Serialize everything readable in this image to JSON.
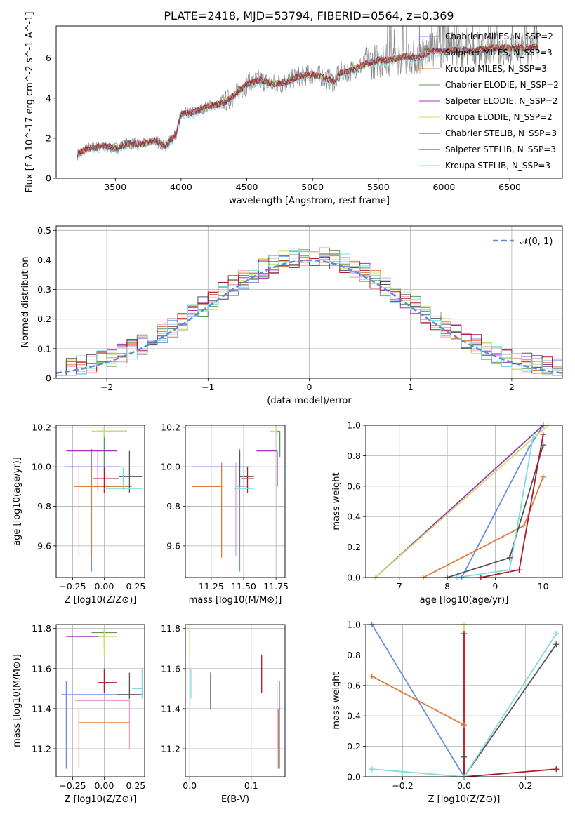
{
  "figure": {
    "title": "PLATE=2418, MJD=53794, FIBERID=0564, z=0.369"
  },
  "colors": {
    "chab_miles": "#6a8fe0",
    "salp_miles": "#e7a0c8",
    "krou_miles": "#e07b39",
    "chab_elodie": "#5a9a5a",
    "salp_elodie": "#9d36b9",
    "krou_elodie": "#c9e06a",
    "chab_stelib": "#555555",
    "salp_stelib": "#b2182b",
    "krou_stelib": "#7fdde0",
    "spectrum": "#808080",
    "normal": "#5b8bd6"
  },
  "chart_data": [
    {
      "type": "line",
      "id": "spectrum",
      "xlabel": "wavelength [Angstrom, rest frame]",
      "ylabel": "Flux [f_λ 10^-17 erg cm^-2 s^-1 A^-1]",
      "xlim": [
        3050,
        6900
      ],
      "ylim": [
        0,
        7.6
      ],
      "xticks": [
        3500,
        4000,
        4500,
        5000,
        5500,
        6000,
        6500
      ],
      "yticks": [
        0,
        2,
        4,
        6
      ],
      "legend": {
        "placement": "top-right",
        "entries": [
          {
            "label": "Chabrier MILES, N_SSP=2",
            "color_key": "chab_miles"
          },
          {
            "label": "Salpeter MILES, N_SSP=3",
            "color_key": "salp_miles"
          },
          {
            "label": "Kroupa MILES, N_SSP=3",
            "color_key": "krou_miles"
          },
          {
            "label": "Chabrier ELODIE, N_SSP=2",
            "color_key": "chab_elodie"
          },
          {
            "label": "Salpeter ELODIE, N_SSP=2",
            "color_key": "salp_elodie"
          },
          {
            "label": "Kroupa ELODIE, N_SSP=2",
            "color_key": "krou_elodie"
          },
          {
            "label": "Chabrier STELIB, N_SSP=3",
            "color_key": "chab_stelib"
          },
          {
            "label": "Salpeter STELIB, N_SSP=3",
            "color_key": "salp_stelib"
          },
          {
            "label": "Kroupa STELIB, N_SSP=3",
            "color_key": "krou_stelib"
          }
        ]
      },
      "model_continuum": {
        "x": [
          3210,
          3300,
          3400,
          3500,
          3600,
          3700,
          3800,
          3880,
          3960,
          4000,
          4100,
          4200,
          4300,
          4400,
          4500,
          4600,
          4700,
          4800,
          4900,
          5000,
          5100,
          5170,
          5200,
          5300,
          5400,
          5500,
          5600,
          5700,
          5800,
          5900,
          6000,
          6100,
          6200,
          6300,
          6400,
          6500,
          6600,
          6720
        ],
        "y": [
          1.2,
          1.5,
          1.6,
          1.5,
          1.75,
          1.7,
          1.9,
          1.6,
          2.2,
          3.2,
          3.3,
          3.6,
          3.7,
          4.1,
          4.7,
          4.9,
          4.7,
          4.8,
          5.1,
          5.2,
          5.0,
          4.8,
          5.2,
          5.4,
          5.7,
          5.9,
          5.9,
          6.1,
          6.0,
          6.4,
          6.3,
          6.4,
          6.35,
          6.45,
          6.5,
          6.5,
          6.5,
          6.6
        ]
      }
    },
    {
      "type": "bar",
      "id": "residuals",
      "xlabel": "(data-model)/error",
      "ylabel": "Normed distribution",
      "xlim": [
        -2.5,
        2.5
      ],
      "ylim": [
        0,
        0.515
      ],
      "xticks": [
        -2,
        -1,
        0,
        1,
        2
      ],
      "xtick_labels": [
        "−2",
        "−1",
        "0",
        "1",
        "2"
      ],
      "yticks": [
        0.0,
        0.1,
        0.2,
        0.3,
        0.4,
        0.5
      ],
      "bin_width": 0.1,
      "grid": true,
      "legend": {
        "placement": "top-right",
        "entries": [
          {
            "label": "𝒩(0, 1)",
            "color_key": "normal",
            "style": "dashed"
          }
        ]
      }
    },
    {
      "type": "scatter",
      "id": "age_vs_Z",
      "xlabel": "Z [log10(Z/Z⊙)]",
      "ylabel": "age [log10(age/yr)]",
      "xlim": [
        -0.38,
        0.32
      ],
      "ylim": [
        9.44,
        10.21
      ],
      "xticks": [
        -0.25,
        0.0,
        0.25
      ],
      "xtick_labels": [
        "−0.25",
        "0.00",
        "0.25"
      ],
      "yticks": [
        9.6,
        9.8,
        10.0,
        10.2
      ],
      "ytick_labels": [
        "9.6",
        "9.8",
        "10.0",
        "10.2"
      ],
      "grid": true,
      "points": [
        {
          "key": "chab_miles",
          "x": -0.1,
          "y": 10.0,
          "xlo": -0.31,
          "xhi": 0.14,
          "ylo": 9.47,
          "yhi": 10.09
        },
        {
          "key": "salp_miles",
          "x": -0.2,
          "y": 9.9,
          "xlo": -0.2,
          "xhi": 0.19,
          "ylo": 9.55,
          "yhi": 10.02
        },
        {
          "key": "krou_miles",
          "x": -0.1,
          "y": 9.9,
          "xlo": -0.24,
          "xhi": 0.22,
          "ylo": 9.54,
          "yhi": 10.02
        },
        {
          "key": "chab_elodie",
          "x": 0.0,
          "y": 10.18,
          "xlo": -0.05,
          "xhi": 0.18,
          "ylo": 10.0,
          "yhi": 10.2
        },
        {
          "key": "salp_elodie",
          "x": -0.05,
          "y": 10.08,
          "xlo": -0.3,
          "xhi": 0.1,
          "ylo": 9.88,
          "yhi": 10.08
        },
        {
          "key": "krou_elodie",
          "x": 0.0,
          "y": 10.18,
          "xlo": -0.1,
          "xhi": 0.18,
          "ylo": 10.15,
          "yhi": 10.2
        },
        {
          "key": "chab_stelib",
          "x": 0.2,
          "y": 9.95,
          "xlo": 0.12,
          "xhi": 0.3,
          "ylo": 9.87,
          "yhi": 10.08
        },
        {
          "key": "salp_stelib",
          "x": 0.0,
          "y": 9.94,
          "xlo": -0.09,
          "xhi": 0.12,
          "ylo": 9.87,
          "yhi": 10.0
        },
        {
          "key": "krou_stelib",
          "x": 0.15,
          "y": 9.89,
          "xlo": 0.0,
          "xhi": 0.3,
          "ylo": 9.88,
          "yhi": 10.0
        }
      ]
    },
    {
      "type": "scatter",
      "id": "age_vs_mass",
      "xlabel": "mass [log10(M/M⊙)]",
      "ylabel": "",
      "xlim": [
        11.05,
        11.82
      ],
      "ylim": [
        9.44,
        10.21
      ],
      "xticks": [
        11.25,
        11.5,
        11.75
      ],
      "xtick_labels": [
        "11.25",
        "11.50",
        "11.75"
      ],
      "yticks": [
        9.6,
        9.8,
        10.0,
        10.2
      ],
      "ytick_labels": [
        "9.6",
        "9.8",
        "10.0",
        "10.2"
      ],
      "grid": true,
      "points": [
        {
          "key": "chab_miles",
          "x": 11.47,
          "y": 10.0,
          "xlo": 11.1,
          "xhi": 11.54,
          "ylo": 9.47,
          "yhi": 10.09
        },
        {
          "key": "salp_miles",
          "x": 11.44,
          "y": 9.9,
          "xlo": 11.44,
          "xhi": 11.54,
          "ylo": 9.55,
          "yhi": 10.02
        },
        {
          "key": "krou_miles",
          "x": 11.33,
          "y": 9.9,
          "xlo": 11.1,
          "xhi": 11.33,
          "ylo": 9.54,
          "yhi": 10.02
        },
        {
          "key": "chab_elodie",
          "x": 11.78,
          "y": 10.18,
          "xlo": 11.75,
          "xhi": 11.78,
          "ylo": 10.05,
          "yhi": 10.18
        },
        {
          "key": "salp_elodie",
          "x": 11.76,
          "y": 10.08,
          "xlo": 11.6,
          "xhi": 11.76,
          "ylo": 9.9,
          "yhi": 10.08
        },
        {
          "key": "krou_elodie",
          "x": 11.76,
          "y": 10.18,
          "xlo": 11.7,
          "xhi": 11.76,
          "ylo": 10.17,
          "yhi": 10.18
        },
        {
          "key": "chab_stelib",
          "x": 11.47,
          "y": 9.95,
          "xlo": 11.47,
          "xhi": 11.58,
          "ylo": 9.9,
          "yhi": 10.08
        },
        {
          "key": "salp_stelib",
          "x": 11.53,
          "y": 9.94,
          "xlo": 11.48,
          "xhi": 11.58,
          "ylo": 9.87,
          "yhi": 10.0
        },
        {
          "key": "krou_stelib",
          "x": 11.5,
          "y": 9.89,
          "xlo": 11.43,
          "xhi": 11.58,
          "ylo": 9.88,
          "yhi": 10.0
        }
      ]
    },
    {
      "type": "line",
      "id": "weight_vs_age",
      "xlabel": "age [log10(age/yr)]",
      "ylabel": "mass weight",
      "xlim": [
        6.3,
        10.4
      ],
      "ylim": [
        0,
        1
      ],
      "xticks": [
        7,
        8,
        9,
        10
      ],
      "yticks": [
        0.0,
        0.2,
        0.4,
        0.6,
        0.8,
        1.0
      ],
      "ytick_labels": [
        "0.0",
        "0.2",
        "0.4",
        "0.6",
        "0.8",
        "1.0"
      ],
      "grid": true,
      "series": [
        {
          "key": "chab_miles",
          "x": [
            8.3,
            9.7,
            10.0
          ],
          "y": [
            0.0,
            0.85,
            1.0
          ]
        },
        {
          "key": "krou_miles",
          "x": [
            7.5,
            9.6,
            10.0
          ],
          "y": [
            0.0,
            0.34,
            0.66
          ]
        },
        {
          "key": "salp_elodie",
          "x": [
            6.5,
            10.0
          ],
          "y": [
            0.0,
            1.0
          ]
        },
        {
          "key": "krou_elodie",
          "x": [
            6.5,
            10.1
          ],
          "y": [
            0.0,
            1.0
          ]
        },
        {
          "key": "chab_stelib",
          "x": [
            8.0,
            9.3,
            10.0
          ],
          "y": [
            0.0,
            0.13,
            0.87
          ]
        },
        {
          "key": "salp_stelib",
          "x": [
            8.7,
            9.5,
            10.0
          ],
          "y": [
            0.0,
            0.05,
            0.94
          ]
        },
        {
          "key": "krou_stelib",
          "x": [
            8.2,
            9.3,
            9.8
          ],
          "y": [
            0.0,
            0.05,
            0.94
          ]
        }
      ]
    },
    {
      "type": "scatter",
      "id": "mass_vs_Z",
      "xlabel": "Z [log10(Z/Z⊙)]",
      "ylabel": "mass [log10(M/M⊙)]",
      "xlim": [
        -0.38,
        0.32
      ],
      "ylim": [
        11.06,
        11.82
      ],
      "xticks": [
        -0.25,
        0.0,
        0.25
      ],
      "xtick_labels": [
        "−0.25",
        "0.00",
        "0.25"
      ],
      "yticks": [
        11.2,
        11.4,
        11.6,
        11.8
      ],
      "ytick_labels": [
        "11.2",
        "11.4",
        "11.6",
        "11.8"
      ],
      "grid": true,
      "points": [
        {
          "key": "chab_miles",
          "x": -0.3,
          "y": 11.47,
          "xlo": -0.34,
          "xhi": 0.27,
          "ylo": 11.1,
          "yhi": 11.54
        },
        {
          "key": "salp_miles",
          "x": 0.2,
          "y": 11.44,
          "xlo": -0.23,
          "xhi": 0.2,
          "ylo": 11.2,
          "yhi": 11.54
        },
        {
          "key": "krou_miles",
          "x": -0.2,
          "y": 11.33,
          "xlo": -0.2,
          "xhi": 0.2,
          "ylo": 11.1,
          "yhi": 11.4
        },
        {
          "key": "chab_elodie",
          "x": 0.0,
          "y": 11.78,
          "xlo": -0.1,
          "xhi": 0.1,
          "ylo": 11.7,
          "yhi": 11.8
        },
        {
          "key": "salp_elodie",
          "x": -0.2,
          "y": 11.76,
          "xlo": -0.3,
          "xhi": 0.0,
          "ylo": 11.76,
          "yhi": 11.76
        },
        {
          "key": "krou_elodie",
          "x": 0.0,
          "y": 11.76,
          "xlo": -0.05,
          "xhi": 0.1,
          "ylo": 11.66,
          "yhi": 11.8
        },
        {
          "key": "chab_stelib",
          "x": 0.2,
          "y": 11.47,
          "xlo": 0.1,
          "xhi": 0.3,
          "ylo": 11.45,
          "yhi": 11.58
        },
        {
          "key": "salp_stelib",
          "x": 0.0,
          "y": 11.53,
          "xlo": -0.05,
          "xhi": 0.1,
          "ylo": 11.48,
          "yhi": 11.6
        },
        {
          "key": "krou_stelib",
          "x": 0.3,
          "y": 11.5,
          "xlo": 0.22,
          "xhi": 0.3,
          "ylo": 11.45,
          "yhi": 11.6
        }
      ]
    },
    {
      "type": "scatter",
      "id": "mass_vs_ebv",
      "xlabel": "E(B-V)",
      "ylabel": "",
      "xlim": [
        -0.007,
        0.155
      ],
      "ylim": [
        11.06,
        11.82
      ],
      "xticks": [
        0.0,
        0.1
      ],
      "xtick_labels": [
        "0.0",
        "0.1"
      ],
      "yticks": [
        11.2,
        11.4,
        11.6,
        11.8
      ],
      "ytick_labels": [
        "11.2",
        "11.4",
        "11.6",
        "11.8"
      ],
      "grid": true,
      "points": [
        {
          "key": "chab_miles",
          "x": 0.146,
          "ylo": 11.1,
          "yhi": 11.54
        },
        {
          "key": "salp_miles",
          "x": 0.142,
          "ylo": 11.2,
          "yhi": 11.54
        },
        {
          "key": "krou_miles",
          "x": 0.144,
          "ylo": 11.1,
          "yhi": 11.4
        },
        {
          "key": "chab_elodie",
          "x": 0.0,
          "ylo": 11.7,
          "yhi": 11.8
        },
        {
          "key": "salp_elodie",
          "x": 0.0,
          "ylo": 11.7,
          "yhi": 11.78
        },
        {
          "key": "krou_elodie",
          "x": 0.0,
          "ylo": 11.66,
          "yhi": 11.8
        },
        {
          "key": "chab_stelib",
          "x": 0.034,
          "ylo": 11.4,
          "yhi": 11.58
        },
        {
          "key": "salp_stelib",
          "x": 0.117,
          "ylo": 11.48,
          "yhi": 11.67
        },
        {
          "key": "krou_stelib",
          "x": 0.002,
          "ylo": 11.45,
          "yhi": 11.6
        }
      ]
    },
    {
      "type": "line",
      "id": "weight_vs_Z",
      "xlabel": "Z [log10(Z/Z⊙)]",
      "ylabel": "mass weight",
      "xlim": [
        -0.32,
        0.32
      ],
      "ylim": [
        0,
        1
      ],
      "xticks": [
        -0.2,
        0.0,
        0.2
      ],
      "xtick_labels": [
        "−0.2",
        "0.0",
        "0.2"
      ],
      "yticks": [
        0.0,
        0.2,
        0.4,
        0.6,
        0.8,
        1.0
      ],
      "ytick_labels": [
        "0.0",
        "0.2",
        "0.4",
        "0.6",
        "0.8",
        "1.0"
      ],
      "grid": true,
      "series": [
        {
          "key": "chab_miles",
          "x": [
            -0.3,
            0.0
          ],
          "y": [
            1.0,
            0.0
          ]
        },
        {
          "key": "krou_miles",
          "x": [
            -0.3,
            0.0
          ],
          "y": [
            0.66,
            0.34
          ]
        },
        {
          "key": "krou_elodie",
          "x": [
            0.0,
            0.0
          ],
          "y": [
            0.0,
            1.0
          ]
        },
        {
          "key": "chab_stelib",
          "x": [
            0.0,
            0.0,
            0.3
          ],
          "y": [
            0.13,
            0.0,
            0.87
          ]
        },
        {
          "key": "salp_stelib",
          "x": [
            0.0,
            0.0,
            0.0,
            0.3
          ],
          "y": [
            0.94,
            0.0,
            0.0,
            0.05
          ]
        },
        {
          "key": "krou_stelib",
          "x": [
            -0.3,
            0.0,
            0.3
          ],
          "y": [
            0.05,
            0.0,
            0.94
          ]
        }
      ]
    }
  ]
}
